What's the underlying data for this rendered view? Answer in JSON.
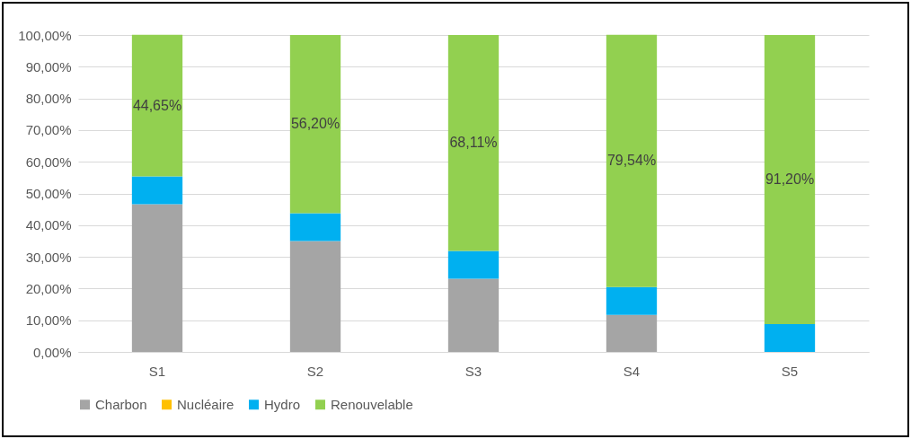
{
  "chart_data": {
    "type": "bar",
    "stacked": true,
    "categories": [
      "S1",
      "S2",
      "S3",
      "S4",
      "S5"
    ],
    "series": [
      {
        "name": "Charbon",
        "color": "#a5a5a5",
        "values": [
          46.6,
          35.0,
          23.1,
          11.7,
          0
        ]
      },
      {
        "name": "Nucléaire",
        "color": "#ffc000",
        "values": [
          0,
          0,
          0,
          0,
          0
        ]
      },
      {
        "name": "Hydro",
        "color": "#00b0f0",
        "values": [
          8.8,
          8.8,
          8.8,
          8.8,
          8.8
        ]
      },
      {
        "name": "Renouvelable",
        "color": "#92d050",
        "values": [
          44.65,
          56.2,
          68.11,
          79.54,
          91.2
        ],
        "value_labels": [
          "44,65%",
          "56,20%",
          "68,11%",
          "79,54%",
          "91,20%"
        ]
      }
    ],
    "ylim": [
      0,
      100
    ],
    "yticks": [
      {
        "value": 0,
        "label": "0,00%"
      },
      {
        "value": 10,
        "label": "10,00%"
      },
      {
        "value": 20,
        "label": "20,00%"
      },
      {
        "value": 30,
        "label": "30,00%"
      },
      {
        "value": 40,
        "label": "40,00%"
      },
      {
        "value": 50,
        "label": "50,00%"
      },
      {
        "value": 60,
        "label": "60,00%"
      },
      {
        "value": 70,
        "label": "70,00%"
      },
      {
        "value": 80,
        "label": "80,00%"
      },
      {
        "value": 90,
        "label": "90,00%"
      },
      {
        "value": 100,
        "label": "100,00%"
      }
    ],
    "grid": "y",
    "legend": "bottom"
  }
}
